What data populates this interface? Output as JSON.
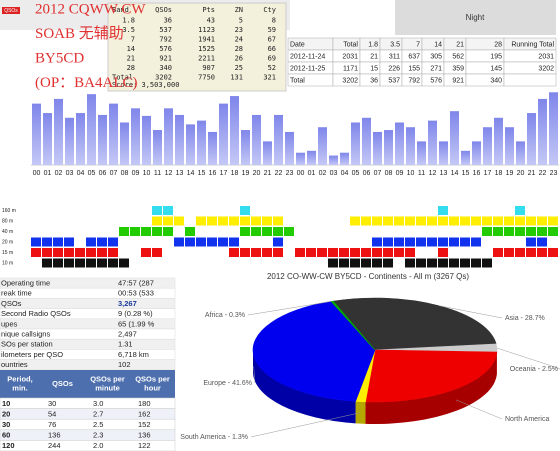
{
  "overlay_text": [
    "2012 CQWW CW",
    "SOAB 无辅助",
    "BY5CD",
    "(OP：BA4ALC)"
  ],
  "night_label": "Night",
  "band_table": {
    "header": [
      "Band",
      "QSOs",
      "Pts",
      "ZN",
      "Cty"
    ],
    "rows": [
      [
        "1.8",
        "36",
        "43",
        "5",
        "8"
      ],
      [
        "3.5",
        "537",
        "1123",
        "23",
        "59"
      ],
      [
        "7",
        "792",
        "1941",
        "24",
        "67"
      ],
      [
        "14",
        "576",
        "1525",
        "28",
        "66"
      ],
      [
        "21",
        "921",
        "2211",
        "26",
        "69"
      ],
      [
        "28",
        "340",
        "907",
        "25",
        "52"
      ],
      [
        "Total",
        "3202",
        "7750",
        "131",
        "321"
      ]
    ],
    "score": "Score: 3,503,000"
  },
  "date_table": {
    "header": [
      "Date",
      "Total",
      "1.8",
      "3.5",
      "7",
      "14",
      "21",
      "28",
      "Running Total"
    ],
    "rows": [
      [
        "2012-11-24",
        "2031",
        "21",
        "311",
        "637",
        "305",
        "562",
        "195",
        "2031"
      ],
      [
        "2012-11-25",
        "1171",
        "15",
        "226",
        "155",
        "271",
        "359",
        "145",
        "3202"
      ],
      [
        "Total",
        "3202",
        "36",
        "537",
        "792",
        "576",
        "921",
        "340"
      ]
    ]
  },
  "activity": {
    "bands": [
      {
        "label": "160 m",
        "color": "#33ddee",
        "hours": [
          11,
          12,
          19,
          37,
          44
        ]
      },
      {
        "label": "80 m",
        "color": "#ffee00",
        "hours": [
          11,
          12,
          13,
          15,
          16,
          17,
          18,
          19,
          20,
          21,
          22,
          29,
          30,
          31,
          32,
          33,
          34,
          35,
          36,
          37,
          38,
          39,
          40,
          41,
          42,
          43,
          44,
          45,
          46,
          47
        ]
      },
      {
        "label": "40 m",
        "color": "#22cc00",
        "hours": [
          8,
          9,
          10,
          11,
          12,
          14,
          19,
          20,
          21,
          22,
          23,
          41,
          42,
          43,
          44,
          45,
          46,
          47
        ]
      },
      {
        "label": "20 m",
        "color": "#1133ee",
        "hours": [
          0,
          1,
          2,
          3,
          5,
          6,
          7,
          13,
          14,
          15,
          16,
          17,
          18,
          22,
          31,
          32,
          33,
          34,
          35,
          36,
          37,
          38,
          39,
          40,
          45,
          46
        ]
      },
      {
        "label": "15 m",
        "color": "#ee1111",
        "hours": [
          0,
          1,
          2,
          3,
          4,
          5,
          6,
          7,
          10,
          11,
          18,
          19,
          20,
          21,
          22,
          24,
          25,
          26,
          27,
          28,
          29,
          30,
          31,
          32,
          33,
          34,
          37,
          42,
          43,
          44,
          45,
          46,
          47
        ]
      },
      {
        "label": "10 m",
        "color": "#111111",
        "hours": [
          1,
          2,
          3,
          4,
          5,
          6,
          7,
          8,
          27,
          28,
          29,
          30,
          31,
          32,
          34,
          35,
          36,
          37,
          38,
          39,
          40,
          41
        ]
      }
    ]
  },
  "stats_table": {
    "rows": [
      [
        "Operating time",
        "47:57 (287"
      ],
      [
        "reak time",
        "00:53 (533"
      ],
      [
        "QSOs",
        "3,267"
      ],
      [
        "Second Radio QSOs",
        "9 (0.28 %)"
      ],
      [
        "upes",
        "65 (1.99 %"
      ],
      [
        "nique callsigns",
        "2,497"
      ],
      [
        "SOs per station",
        "1.31"
      ],
      [
        "ilometers per QSO",
        "6,718 km"
      ],
      [
        "ountries",
        "102"
      ]
    ]
  },
  "rate_table": {
    "header": [
      "Period, min.",
      "QSOs",
      "QSOs per minute",
      "QSOs per hour"
    ],
    "rows": [
      [
        "10",
        "30",
        "3.0",
        "180"
      ],
      [
        "20",
        "54",
        "2.7",
        "162"
      ],
      [
        "30",
        "76",
        "2.5",
        "152"
      ],
      [
        "60",
        "136",
        "2.3",
        "136"
      ],
      [
        "120",
        "244",
        "2.0",
        "122"
      ]
    ]
  },
  "chart_data": [
    {
      "type": "bar",
      "y_label": "QSOs",
      "categories": [
        "00",
        "01",
        "02",
        "03",
        "04",
        "05",
        "06",
        "07",
        "08",
        "09",
        "10",
        "11",
        "12",
        "13",
        "14",
        "15",
        "16",
        "17",
        "18",
        "19",
        "20",
        "21",
        "22",
        "23",
        "00",
        "01",
        "02",
        "03",
        "04",
        "05",
        "06",
        "07",
        "08",
        "09",
        "10",
        "11",
        "12",
        "13",
        "14",
        "15",
        "16",
        "17",
        "18",
        "19",
        "20",
        "21",
        "22",
        "23"
      ],
      "values": [
        65,
        55,
        70,
        50,
        55,
        75,
        53,
        65,
        45,
        60,
        52,
        37,
        60,
        53,
        43,
        47,
        35,
        65,
        73,
        37,
        53,
        25,
        53,
        35,
        13,
        15,
        40,
        10,
        13,
        45,
        50,
        35,
        37,
        45,
        40,
        25,
        47,
        25,
        57,
        15,
        25,
        40,
        50,
        40,
        25,
        55,
        70,
        77
      ],
      "ylim": [
        0,
        90
      ]
    },
    {
      "type": "pie",
      "title": "2012 CO-WW-CW BY5CD - Continents - All m (3267 Qs)",
      "values": [
        28.7,
        2.5,
        25.6,
        1.3,
        41.6,
        0.3
      ],
      "value_labels": [
        "Asia - 28.7%",
        "Oceania - 2.5%",
        "North America",
        "South America - 1.3%",
        "Europe - 41.6%",
        "Africa - 0.3%"
      ],
      "colors": [
        "#333333",
        "#cccccc",
        "#ee0000",
        "#ffee00",
        "#0000ee",
        "#00aa00"
      ]
    }
  ]
}
